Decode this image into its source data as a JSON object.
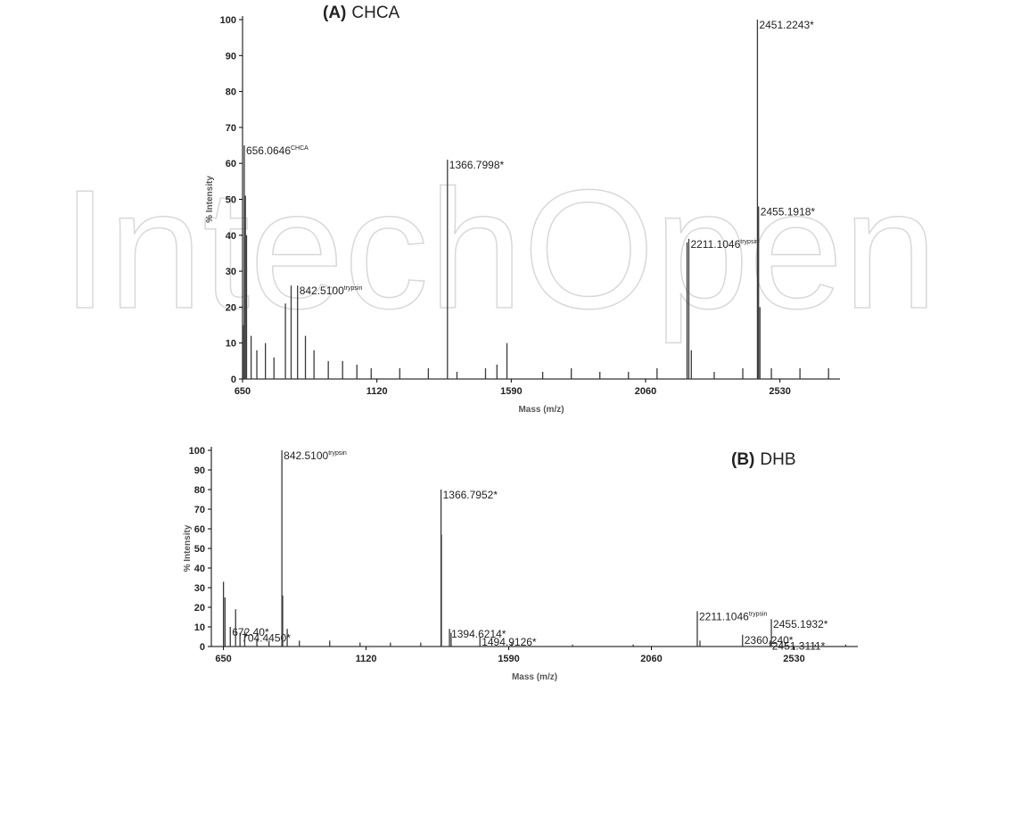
{
  "watermark": "IntechOpen",
  "chart_data": [
    {
      "type": "stem",
      "title_tag": "(A)",
      "title": "CHCA",
      "xlabel": "Mass (m/z)",
      "ylabel": "% Intensity",
      "color": "#3a3a3a",
      "xlim": [
        650,
        2740
      ],
      "ylim": [
        0,
        100
      ],
      "xticks": [
        650,
        1120,
        1590,
        2060,
        2530
      ],
      "yticks": [
        0,
        10,
        20,
        30,
        40,
        50,
        60,
        70,
        80,
        90,
        100
      ],
      "x": [
        652,
        656.0646,
        660,
        664,
        680,
        700,
        730,
        760,
        800,
        820,
        842.51,
        870,
        900,
        950,
        1000,
        1050,
        1100,
        1200,
        1300,
        1366.7998,
        1400,
        1500,
        1540,
        1575,
        1700,
        1800,
        1900,
        2000,
        2100,
        2205,
        2211.1046,
        2220,
        2300,
        2400,
        2451.2243,
        2455.1918,
        2460,
        2500,
        2600,
        2700
      ],
      "values": [
        15,
        65,
        51,
        40,
        12,
        8,
        10,
        6,
        21,
        26,
        26,
        12,
        8,
        5,
        5,
        4,
        3,
        3,
        3,
        61,
        2,
        3,
        4,
        10,
        2,
        3,
        2,
        2,
        3,
        38,
        39,
        8,
        2,
        3,
        100,
        48,
        20,
        3,
        3,
        3
      ],
      "labels": [
        null,
        "656.0646",
        null,
        null,
        null,
        null,
        null,
        null,
        null,
        null,
        "842.5100",
        null,
        null,
        null,
        null,
        null,
        null,
        null,
        null,
        "1366.7998*",
        null,
        null,
        null,
        null,
        null,
        null,
        null,
        null,
        null,
        null,
        "2211.1046",
        null,
        null,
        null,
        "2451.2243*",
        "2455.1918*",
        null,
        null,
        null,
        null
      ],
      "label_sups": [
        null,
        "CHCA",
        null,
        null,
        null,
        null,
        null,
        null,
        null,
        null,
        "trypsin",
        null,
        null,
        null,
        null,
        null,
        null,
        null,
        null,
        null,
        null,
        null,
        null,
        null,
        null,
        null,
        null,
        null,
        null,
        null,
        "trypsin",
        null,
        null,
        null,
        null,
        null,
        null,
        null,
        null,
        null
      ]
    },
    {
      "type": "stem",
      "title_tag": "(B)",
      "title": "DHB",
      "xlabel": "Mass (m/z)",
      "ylabel": "% Intensity",
      "color": "#3a3a3a",
      "xlim": [
        610,
        2740
      ],
      "ylim": [
        0,
        100
      ],
      "xticks": [
        650,
        1120,
        1590,
        2060,
        2530
      ],
      "yticks": [
        0,
        10,
        20,
        30,
        40,
        50,
        60,
        70,
        80,
        90,
        100
      ],
      "x": [
        650,
        655,
        672.4,
        690,
        704.445,
        720,
        760,
        800,
        842.51,
        845,
        860,
        900,
        1000,
        1100,
        1200,
        1300,
        1366.7952,
        1368,
        1394.6214,
        1400,
        1494.9126,
        1600,
        1800,
        2000,
        2211.1046,
        2220,
        2360.24,
        2451.3111,
        2455.1932,
        2600,
        2700
      ],
      "values": [
        33,
        25,
        10,
        19,
        7,
        8,
        4,
        3,
        100,
        26,
        9,
        3,
        3,
        2,
        2,
        2,
        80,
        57,
        9,
        7,
        5,
        2,
        1,
        1,
        18,
        3,
        6,
        3,
        14,
        1,
        1
      ],
      "labels": [
        null,
        null,
        "672.40*",
        null,
        "704.4450*",
        null,
        null,
        null,
        "842.5100",
        null,
        null,
        null,
        null,
        null,
        null,
        null,
        "1366.7952*",
        null,
        "1394.6214*",
        null,
        "1494.9126*",
        null,
        null,
        null,
        "2211.1046",
        null,
        "2360.240*",
        "2451.3111*",
        "2455.1932*",
        null,
        null
      ],
      "label_sups": [
        null,
        null,
        null,
        null,
        null,
        null,
        null,
        null,
        "trypsin",
        null,
        null,
        null,
        null,
        null,
        null,
        null,
        null,
        null,
        null,
        null,
        null,
        null,
        null,
        null,
        "trypsin",
        null,
        null,
        null,
        null,
        null,
        null
      ]
    }
  ]
}
